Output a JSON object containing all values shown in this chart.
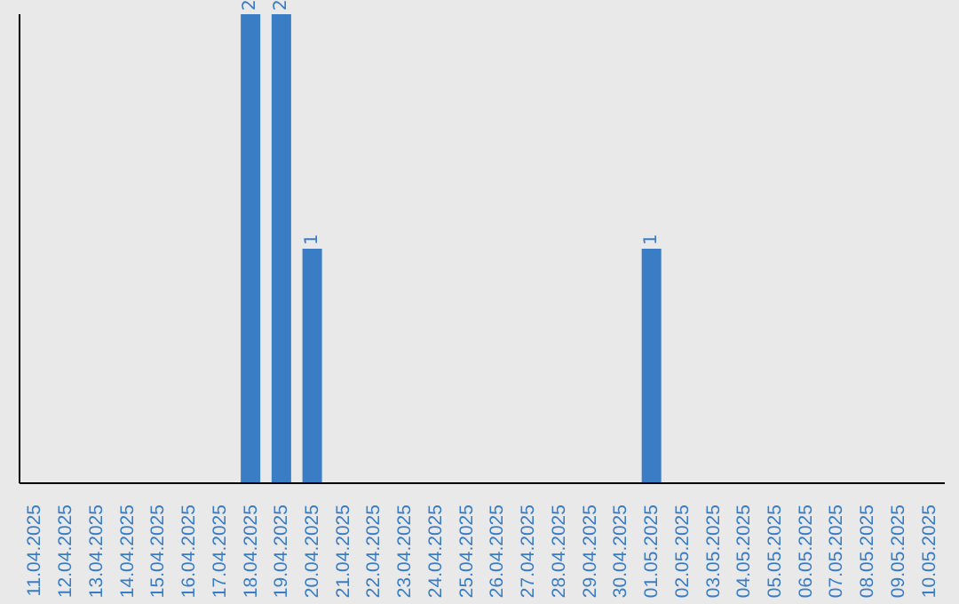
{
  "chart_data": {
    "type": "bar",
    "categories": [
      "11.04.2025",
      "12.04.2025",
      "13.04.2025",
      "14.04.2025",
      "15.04.2025",
      "16.04.2025",
      "17.04.2025",
      "18.04.2025",
      "19.04.2025",
      "20.04.2025",
      "21.04.2025",
      "22.04.2025",
      "23.04.2025",
      "24.04.2025",
      "25.04.2025",
      "26.04.2025",
      "27.04.2025",
      "28.04.2025",
      "29.04.2025",
      "30.04.2025",
      "01.05.2025",
      "02.05.2025",
      "03.05.2025",
      "04.05.2025",
      "05.05.2025",
      "06.05.2025",
      "07.05.2025",
      "08.05.2025",
      "09.05.2025",
      "10.05.2025"
    ],
    "values": [
      0,
      0,
      0,
      0,
      0,
      0,
      0,
      2,
      2,
      1,
      0,
      0,
      0,
      0,
      0,
      0,
      0,
      0,
      0,
      0,
      1,
      0,
      0,
      0,
      0,
      0,
      0,
      0,
      0,
      0
    ],
    "value_labels": [
      null,
      null,
      null,
      null,
      null,
      null,
      null,
      "2",
      "2",
      "1",
      null,
      null,
      null,
      null,
      null,
      null,
      null,
      null,
      null,
      null,
      "1",
      null,
      null,
      null,
      null,
      null,
      null,
      null,
      null,
      null
    ],
    "color": "#3a7dc4",
    "tick_labels": "x",
    "grid": false
  }
}
